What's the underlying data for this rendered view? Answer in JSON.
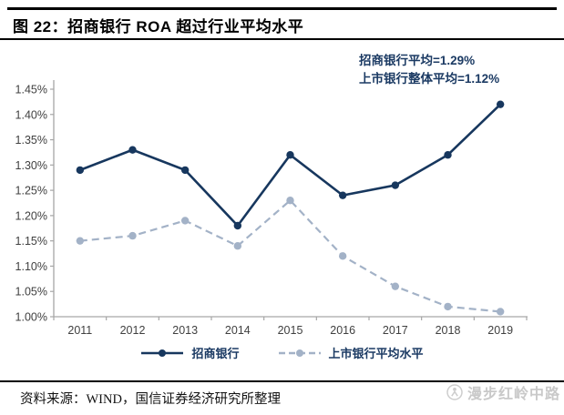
{
  "header": {
    "title": "图 22：招商银行 ROA 超过行业平均水平"
  },
  "chart_data": {
    "type": "line",
    "title": "图 22：招商银行 ROA 超过行业平均水平",
    "unit": "%",
    "categories": [
      "2011",
      "2012",
      "2013",
      "2014",
      "2015",
      "2016",
      "2017",
      "2018",
      "2019"
    ],
    "series": [
      {
        "name": "招商银行",
        "values": [
          1.29,
          1.33,
          1.29,
          1.18,
          1.32,
          1.24,
          1.26,
          1.32,
          1.42
        ],
        "color": "#17375E",
        "style": "solid",
        "stroke_width": 2.6,
        "dash": null
      },
      {
        "name": "上市银行平均水平",
        "values": [
          1.15,
          1.16,
          1.19,
          1.14,
          1.23,
          1.12,
          1.06,
          1.02,
          1.01
        ],
        "color": "#A3B2C7",
        "style": "dashed",
        "stroke_width": 2.2,
        "dash": "8 5"
      }
    ],
    "ylim": [
      1.0,
      1.45
    ],
    "y_ticks": [
      "1.00%",
      "1.05%",
      "1.10%",
      "1.15%",
      "1.20%",
      "1.25%",
      "1.30%",
      "1.35%",
      "1.40%",
      "1.45%"
    ],
    "xlabel": "",
    "ylabel": "",
    "grid": false,
    "legend_position": "bottom",
    "axis_color": "#A6A6A6",
    "tick_label_color": "#404040",
    "annotations": [
      "招商银行平均=1.29%",
      "上市银行整体平均=1.12%"
    ]
  },
  "footer": {
    "source": "资料来源：WIND，国信证券经济研究所整理",
    "watermark": "漫步红岭中路"
  }
}
